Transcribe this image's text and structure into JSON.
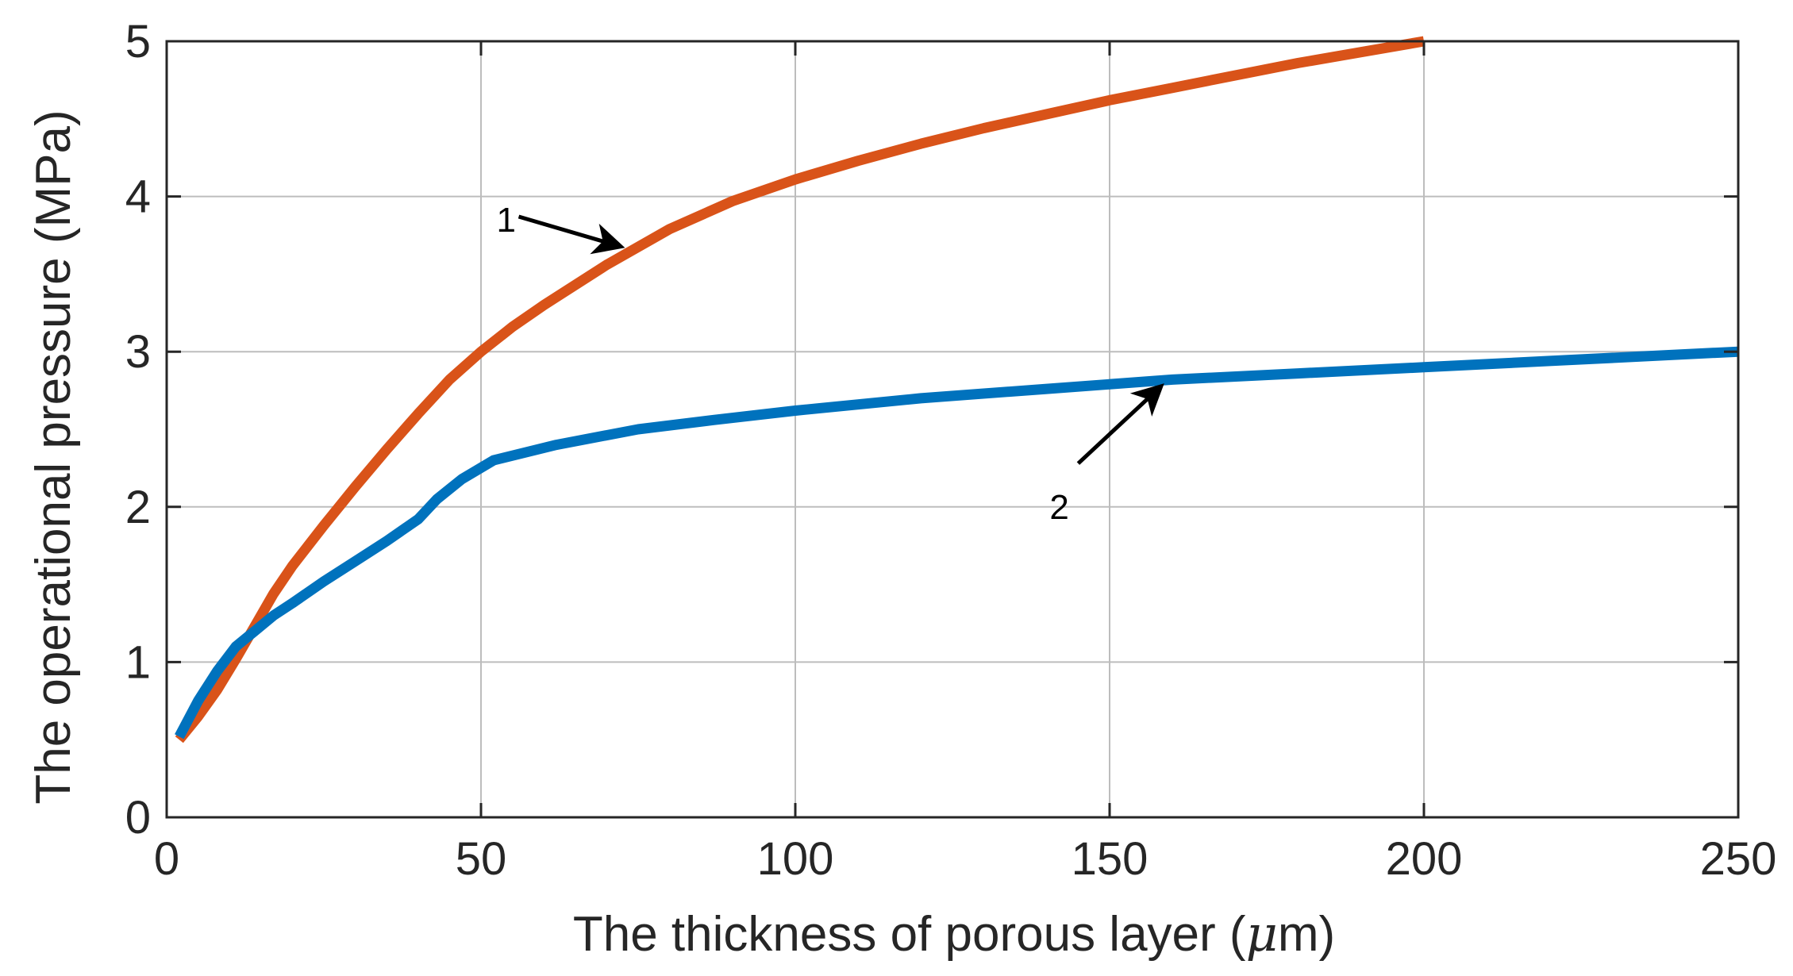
{
  "chart_data": {
    "type": "line",
    "xlabel_prefix": "The thickness of porous layer (",
    "xlabel_unit_mu": "μ",
    "xlabel_suffix": "m)",
    "ylabel": "The operational pressure (MPa)",
    "xlim": [
      0,
      250
    ],
    "ylim": [
      0,
      5
    ],
    "xticks": [
      0,
      50,
      100,
      150,
      200,
      250
    ],
    "yticks": [
      0,
      1,
      2,
      3,
      4,
      5
    ],
    "grid": true,
    "series": [
      {
        "name": "1",
        "color": "#d95319",
        "x": [
          2,
          5,
          8,
          11,
          14,
          17,
          20,
          25,
          30,
          35,
          40,
          45,
          50,
          55,
          60,
          70,
          80,
          90,
          100,
          110,
          120,
          130,
          140,
          150,
          160,
          170,
          180,
          190,
          200
        ],
        "y": [
          0.5,
          0.65,
          0.82,
          1.02,
          1.23,
          1.44,
          1.62,
          1.88,
          2.13,
          2.37,
          2.6,
          2.82,
          3.0,
          3.16,
          3.3,
          3.56,
          3.79,
          3.97,
          4.11,
          4.23,
          4.34,
          4.44,
          4.53,
          4.62,
          4.7,
          4.78,
          4.86,
          4.93,
          5.0
        ]
      },
      {
        "name": "2",
        "color": "#0072bd",
        "x": [
          2,
          5,
          8,
          11,
          14,
          17,
          20,
          25,
          30,
          35,
          40,
          43,
          47,
          52,
          62,
          75,
          87,
          100,
          120,
          140,
          160,
          180,
          200,
          220,
          250
        ],
        "y": [
          0.52,
          0.75,
          0.94,
          1.1,
          1.2,
          1.3,
          1.38,
          1.52,
          1.65,
          1.78,
          1.92,
          2.05,
          2.18,
          2.3,
          2.4,
          2.5,
          2.56,
          2.62,
          2.7,
          2.76,
          2.82,
          2.86,
          2.9,
          2.94,
          3.0
        ]
      }
    ],
    "annotations": [
      {
        "label": "1",
        "text_x": 54,
        "text_y": 3.85,
        "arrow_from": [
          56,
          3.87
        ],
        "arrow_to": [
          72,
          3.68
        ]
      },
      {
        "label": "2",
        "text_x": 142,
        "text_y": 2.0,
        "arrow_from": [
          145,
          2.28
        ],
        "arrow_to": [
          158,
          2.77
        ]
      }
    ]
  }
}
